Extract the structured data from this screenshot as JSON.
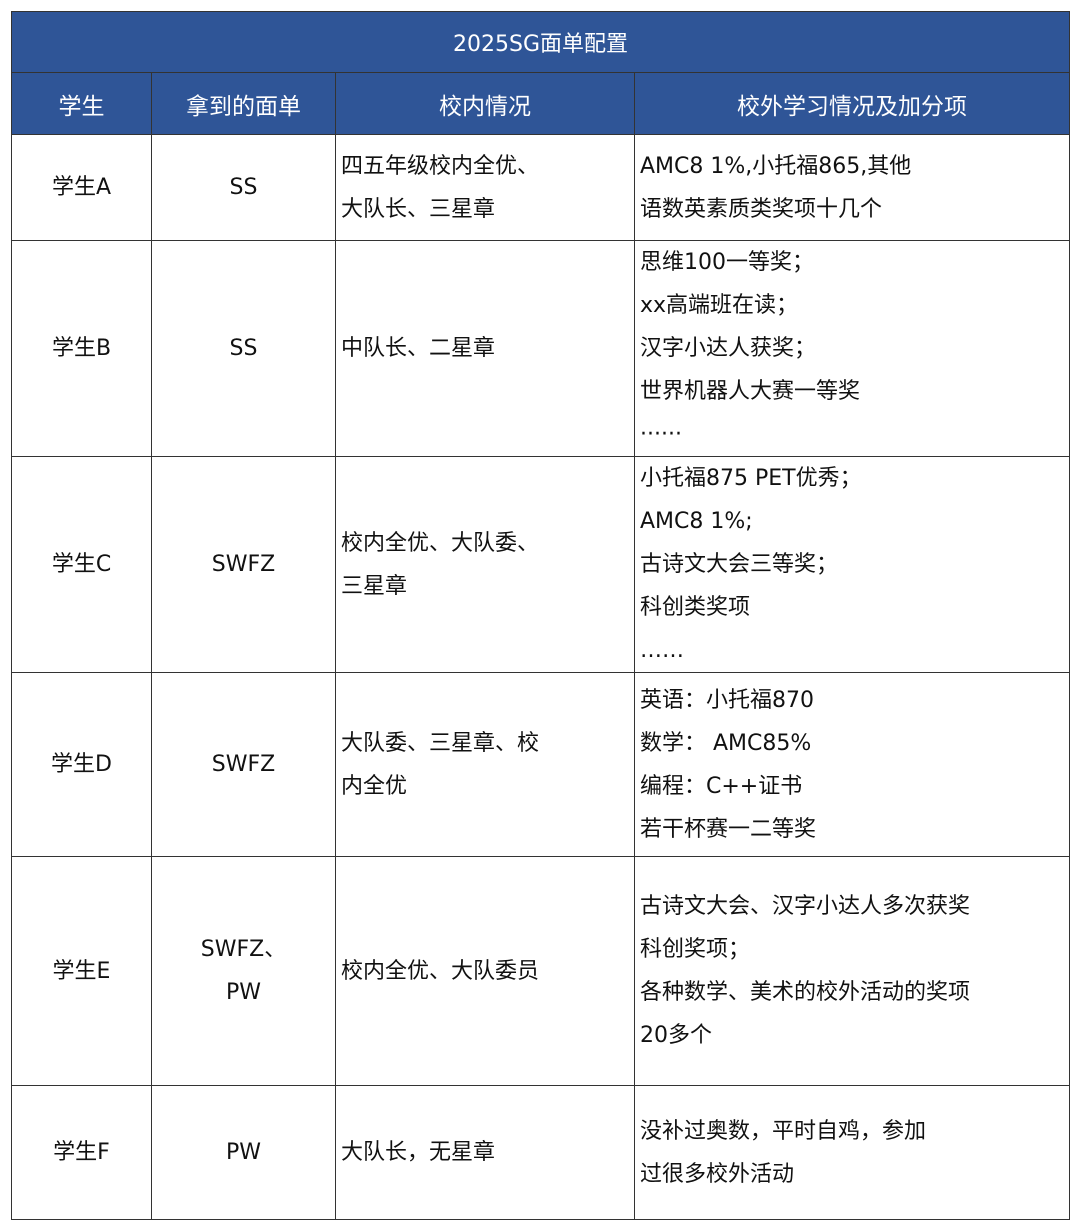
{
  "title": "2025SG面单配置",
  "headers": [
    "学生",
    "拿到的面单",
    "校内情况",
    "校外学习情况及加分项"
  ],
  "rows": [
    {
      "student": "学生A",
      "offer": [
        "SS"
      ],
      "school": [
        "四五年级校内全优、",
        "大队长、三星章"
      ],
      "outside": [
        "AMC8 1%,小托福865,其他",
        "语数英素质类奖项十几个"
      ]
    },
    {
      "student": "学生B",
      "offer": [
        "SS"
      ],
      "school": [
        "中队长、二星章"
      ],
      "outside": [
        "思维100一等奖；",
        "xx高端班在读；",
        "汉字小达人获奖；",
        "世界机器人大赛一等奖",
        "······"
      ]
    },
    {
      "student": "学生C",
      "offer": [
        "SWFZ"
      ],
      "school": [
        "校内全优、大队委、",
        "三星章"
      ],
      "outside": [
        "小托福875 PET优秀；",
        "AMC8 1%;",
        "古诗文大会三等奖；",
        "科创类奖项",
        "……"
      ]
    },
    {
      "student": "学生D",
      "offer": [
        "SWFZ"
      ],
      "school": [
        "大队委、三星章、校",
        "内全优"
      ],
      "outside": [
        "英语：小托福870",
        "数学： AMC85%",
        "编程：C++证书",
        "若干杯赛一二等奖"
      ]
    },
    {
      "student": "学生E",
      "offer": [
        "SWFZ、",
        "PW"
      ],
      "school": [
        "校内全优、大队委员"
      ],
      "outside": [
        "古诗文大会、汉字小达人多次获奖",
        "科创奖项；",
        "各种数学、美术的校外活动的奖项",
        "20多个"
      ]
    },
    {
      "student": "学生F",
      "offer": [
        "PW"
      ],
      "school": [
        "大队长，无星章"
      ],
      "outside": [
        "没补过奥数，平时自鸡，参加",
        "过很多校外活动"
      ]
    }
  ],
  "colors": {
    "header_bg": "#2f5597",
    "header_text": "#ffffff",
    "border": "#333333"
  }
}
